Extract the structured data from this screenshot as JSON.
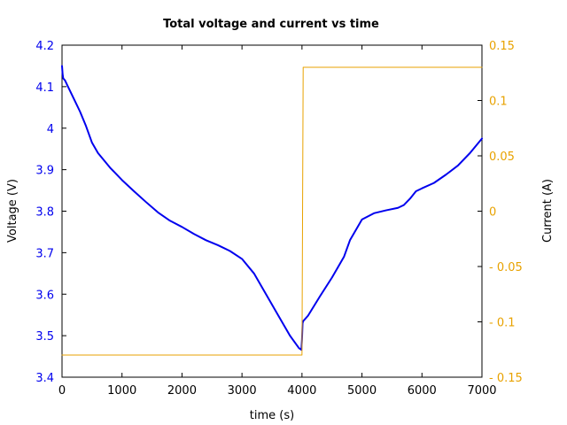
{
  "chart_data": {
    "type": "line",
    "title": "Total voltage and current vs time",
    "xlabel": "time (s)",
    "ylabel_left": "Voltage (V)",
    "ylabel_right": "Current (A)",
    "xlim": [
      0,
      7000
    ],
    "ylim_left": [
      3.4,
      4.2
    ],
    "ylim_right": [
      -0.15,
      0.15
    ],
    "x_ticks": [
      0,
      1000,
      2000,
      3000,
      4000,
      5000,
      6000,
      7000
    ],
    "y_left_ticks": [
      3.4,
      3.5,
      3.6,
      3.7,
      3.8,
      3.9,
      4,
      4.1,
      4.2
    ],
    "y_right_ticks": [
      -0.15,
      -0.1,
      -0.05,
      0,
      0.05,
      0.1,
      0.15
    ],
    "grid": false,
    "legend": "none",
    "colors": {
      "voltage": "#0000ee",
      "current": "#e8a200",
      "left_ticks": "#0000ee",
      "right_ticks": "#e8a200"
    },
    "series": [
      {
        "axis": "left",
        "x": [
          0,
          10,
          20,
          50,
          100,
          200,
          300,
          400,
          500,
          600,
          800,
          1000,
          1200,
          1400,
          1600,
          1800,
          2000,
          2200,
          2400,
          2600,
          2800,
          3000,
          3200,
          3400,
          3600,
          3800,
          3950,
          3990,
          4000,
          4010,
          4020,
          4100,
          4300,
          4500,
          4700,
          4800,
          5000,
          5200,
          5400,
          5600,
          5700,
          5800,
          5900,
          6000,
          6200,
          6400,
          6600,
          6800,
          7000
        ],
        "y": [
          4.15,
          4.13,
          4.12,
          4.115,
          4.1,
          4.07,
          4.04,
          4.005,
          3.965,
          3.94,
          3.905,
          3.875,
          3.848,
          3.822,
          3.797,
          3.777,
          3.762,
          3.745,
          3.73,
          3.718,
          3.704,
          3.685,
          3.65,
          3.6,
          3.55,
          3.5,
          3.47,
          3.466,
          3.49,
          3.53,
          3.535,
          3.548,
          3.595,
          3.64,
          3.69,
          3.73,
          3.78,
          3.795,
          3.802,
          3.808,
          3.815,
          3.83,
          3.848,
          3.855,
          3.868,
          3.888,
          3.91,
          3.94,
          3.975
        ]
      },
      {
        "axis": "right",
        "x": [
          0,
          4000,
          4020,
          7000
        ],
        "y": [
          -0.13,
          -0.13,
          0.13,
          0.13
        ]
      }
    ]
  }
}
